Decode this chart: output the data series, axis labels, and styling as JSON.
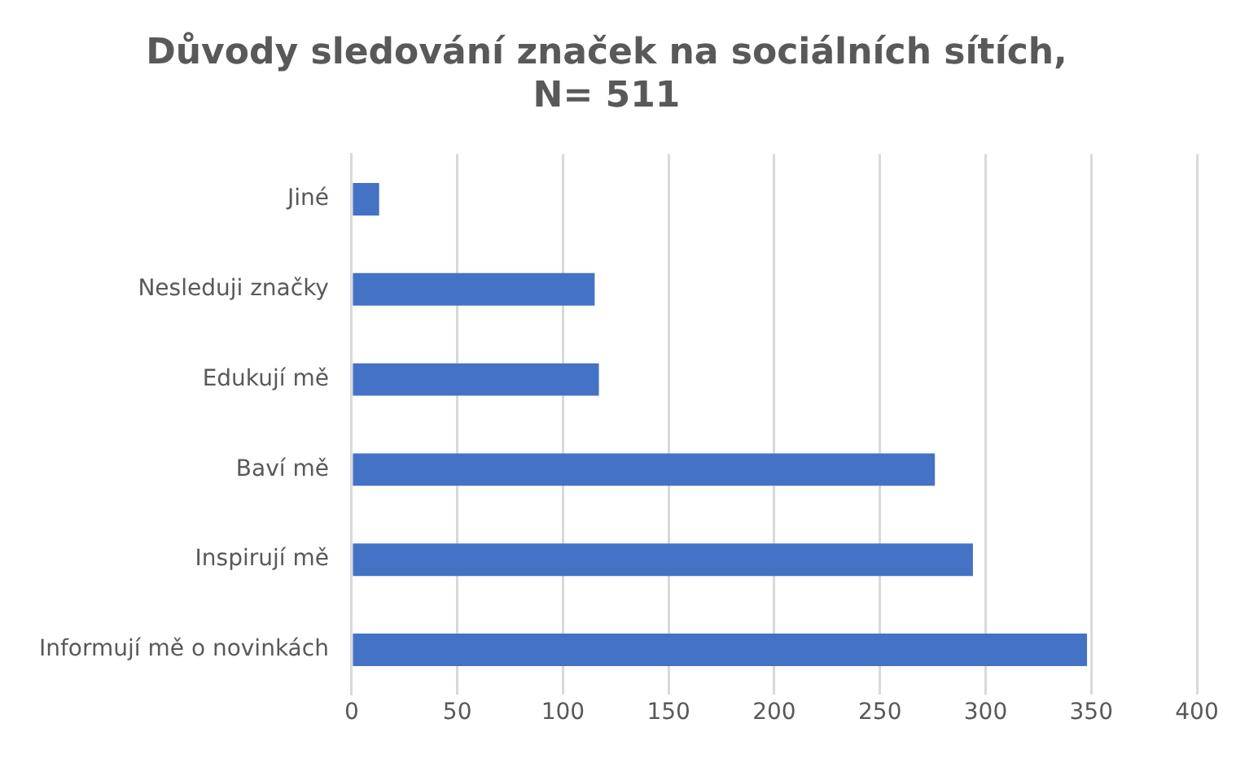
{
  "chart_data": {
    "type": "bar",
    "orientation": "horizontal",
    "title": "Důvody sledování značek na sociálních sítích,\nN= 511",
    "categories": [
      "Jiné",
      "Nesleduji značky",
      "Edukují mě",
      "Baví mě",
      "Inspirují mě",
      "Informují mě o novinkách"
    ],
    "values": [
      13,
      115,
      117,
      276,
      294,
      348
    ],
    "color": "#4472c4",
    "xlim": [
      0,
      400
    ],
    "xticks": [
      0,
      50,
      100,
      150,
      200,
      250,
      300,
      350,
      400
    ],
    "grid": "x",
    "legend": false
  }
}
